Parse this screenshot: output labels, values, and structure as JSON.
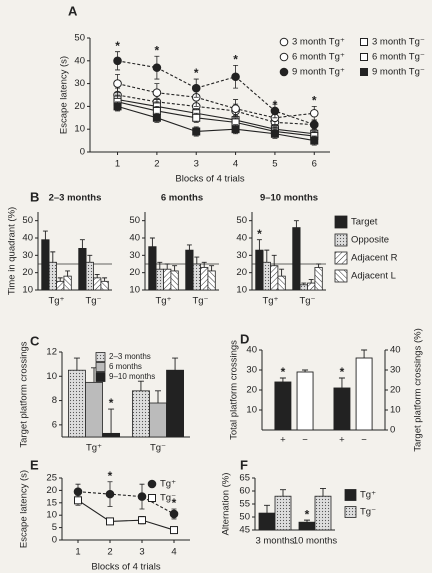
{
  "chart_data": [
    {
      "type": "line",
      "panel": "A",
      "xlabel": "Blocks of 4 trials",
      "ylabel": "Escape latency (s)",
      "x": [
        1,
        2,
        3,
        4,
        5,
        6
      ],
      "xlim": [
        0.3,
        6.4
      ],
      "xticks": [
        1,
        2,
        3,
        4,
        5,
        6
      ],
      "ylim": [
        0,
        50
      ],
      "yticks": [
        0,
        10,
        20,
        30,
        40,
        50
      ],
      "significance_label": "*",
      "legend": "upper right",
      "series": [
        {
          "name": "3 month Tg⁺",
          "color": "#222",
          "marker": "circle",
          "marker_fill": "open",
          "dash": true,
          "values": [
            25,
            22,
            20,
            18,
            13,
            12
          ],
          "errors": [
            3,
            3,
            3,
            3,
            2,
            2
          ]
        },
        {
          "name": "6 month Tg⁺",
          "color": "#222",
          "marker": "circle",
          "marker_fill": "open",
          "dash": true,
          "values": [
            30,
            26,
            24,
            19,
            15,
            17
          ],
          "errors": [
            4,
            4,
            4,
            4,
            3,
            3
          ],
          "significant": [
            false,
            false,
            false,
            false,
            true,
            true
          ]
        },
        {
          "name": "9 month Tg⁺",
          "color": "#222",
          "marker": "circle",
          "marker_fill": "filled",
          "dash": true,
          "values": [
            40,
            37,
            28,
            33,
            18,
            12
          ],
          "errors": [
            4,
            5,
            4,
            5,
            3,
            2
          ],
          "significant": [
            true,
            true,
            true,
            true,
            false,
            false
          ]
        },
        {
          "name": "3 month Tg⁻",
          "color": "#222",
          "marker": "square",
          "marker_fill": "open",
          "dash": false,
          "values": [
            23,
            20,
            17,
            14,
            10,
            8
          ],
          "errors": [
            3,
            3,
            2,
            2,
            2,
            2
          ]
        },
        {
          "name": "6 month Tg⁻",
          "color": "#222",
          "marker": "square",
          "marker_fill": "open",
          "dash": false,
          "values": [
            22,
            18,
            15,
            13,
            9,
            7
          ],
          "errors": [
            3,
            2,
            2,
            2,
            2,
            2
          ]
        },
        {
          "name": "9 month Tg⁻",
          "color": "#222",
          "marker": "square",
          "marker_fill": "filled",
          "dash": false,
          "values": [
            20,
            15,
            9,
            10,
            8,
            5
          ],
          "errors": [
            2,
            2,
            2,
            2,
            2,
            2
          ]
        }
      ]
    },
    {
      "type": "bar",
      "panel": "B",
      "ylabel": "Time in quadrant (%)",
      "categories": [
        "Tg⁺",
        "Tg⁻"
      ],
      "ylim": [
        10,
        55
      ],
      "yticks": [
        10,
        20,
        30,
        40,
        50
      ],
      "reference_line": 25,
      "significance_label": "*",
      "legend": "right",
      "series": [
        {
          "name": "Target",
          "color": "#222",
          "pattern": "solid"
        },
        {
          "name": "Opposite",
          "color": "#ddd",
          "pattern": "dots"
        },
        {
          "name": "Adjacent R",
          "color": "#fff",
          "pattern": "hatch-down"
        },
        {
          "name": "Adjacent L",
          "color": "#fff",
          "pattern": "hatch-up"
        }
      ],
      "facets": [
        {
          "title": "2–3 months",
          "values": [
            [
              39,
              34
            ],
            [
              26,
              26
            ],
            [
              15,
              17
            ],
            [
              18,
              15
            ]
          ],
          "errors": [
            [
              5,
              5
            ],
            [
              6,
              4
            ],
            [
              2,
              2
            ],
            [
              3,
              2
            ]
          ]
        },
        {
          "title": "6 months",
          "values": [
            [
              35,
              33
            ],
            [
              22,
              25
            ],
            [
              22,
              23
            ],
            [
              21,
              21
            ]
          ],
          "errors": [
            [
              5,
              3
            ],
            [
              4,
              4
            ],
            [
              3,
              3
            ],
            [
              3,
              3
            ]
          ]
        },
        {
          "title": "9–10 months",
          "values": [
            [
              33,
              46
            ],
            [
              26,
              13
            ],
            [
              24,
              14
            ],
            [
              18,
              23
            ]
          ],
          "errors": [
            [
              6,
              4
            ],
            [
              7,
              1
            ],
            [
              6,
              2
            ],
            [
              4,
              2
            ]
          ],
          "significant": [
            [
              true,
              false
            ],
            [
              false,
              false
            ],
            [
              false,
              false
            ],
            [
              false,
              false
            ]
          ]
        }
      ]
    },
    {
      "type": "bar",
      "panel": "C",
      "ylabel": "Target platform crossings",
      "categories": [
        "Tg⁺",
        "Tg⁻"
      ],
      "ylim": [
        5,
        12
      ],
      "yticks": [
        6,
        8,
        10,
        12
      ],
      "significance_label": "*",
      "legend": "upper center",
      "series": [
        {
          "name": "2–3 months",
          "color": "#ddd",
          "pattern": "dots",
          "values": [
            10.5,
            8.8
          ],
          "errors": [
            1,
            0.8
          ]
        },
        {
          "name": "6 months",
          "color": "#bbb",
          "pattern": "solid",
          "values": [
            9.5,
            7.8
          ],
          "errors": [
            1.2,
            1
          ]
        },
        {
          "name": "9–10 months",
          "color": "#222",
          "pattern": "solid",
          "values": [
            5.3,
            10.5
          ],
          "errors": [
            2,
            1
          ],
          "significant": [
            true,
            false
          ]
        }
      ]
    },
    {
      "type": "bar",
      "panel": "D",
      "ylabel": "Total platform crossings",
      "y2label": "Target platform crossings (%)",
      "categories": [
        "+",
        "−",
        "+",
        "−"
      ],
      "bar_colors": [
        "#222",
        "#fff",
        "#222",
        "#fff"
      ],
      "ylim": [
        0,
        40
      ],
      "yticks": [
        10,
        20,
        30,
        40
      ],
      "y2lim": [
        0,
        40
      ],
      "y2ticks": [
        0,
        10,
        20,
        30,
        40
      ],
      "significance_label": "*",
      "series": [
        {
          "axis": "y",
          "values": [
            24,
            29,
            null,
            null
          ],
          "errors": [
            2,
            1,
            null,
            null
          ],
          "significant": [
            true,
            false,
            false,
            false
          ]
        },
        {
          "axis": "y2",
          "values": [
            null,
            null,
            21,
            36
          ],
          "errors": [
            null,
            null,
            5,
            4
          ],
          "significant": [
            false,
            false,
            true,
            false
          ]
        }
      ]
    },
    {
      "type": "line",
      "panel": "E",
      "xlabel": "Blocks of 4 trials",
      "ylabel": "Escape latency (s)",
      "x": [
        1,
        2,
        3,
        4
      ],
      "xlim": [
        0.5,
        4.5
      ],
      "xticks": [
        1,
        2,
        3,
        4
      ],
      "ylim": [
        0,
        25
      ],
      "yticks": [
        0,
        5,
        10,
        15,
        20,
        25
      ],
      "significance_label": "*",
      "legend": "upper right",
      "series": [
        {
          "name": "Tg⁺",
          "color": "#222",
          "marker": "circle",
          "marker_fill": "filled",
          "dash": true,
          "values": [
            19.5,
            18.5,
            17.5,
            10.5
          ],
          "errors": [
            3,
            5,
            5,
            2
          ],
          "significant": [
            false,
            true,
            false,
            true
          ]
        },
        {
          "name": "Tg⁻",
          "color": "#222",
          "marker": "square",
          "marker_fill": "open",
          "dash": false,
          "values": [
            16,
            7.5,
            8,
            4
          ],
          "errors": [
            2,
            0.5,
            1.5,
            0.6
          ]
        }
      ]
    },
    {
      "type": "bar",
      "panel": "F",
      "ylabel": "Alternation (%)",
      "categories": [
        "3 months",
        "10 months"
      ],
      "ylim": [
        45,
        65
      ],
      "yticks": [
        45,
        50,
        55,
        60,
        65
      ],
      "significance_label": "*",
      "legend": "right",
      "series": [
        {
          "name": "Tg⁺",
          "color": "#222",
          "pattern": "solid",
          "values": [
            51.5,
            48
          ],
          "errors": [
            3,
            0.8
          ],
          "significant": [
            false,
            true
          ]
        },
        {
          "name": "Tg⁻",
          "color": "#ddd",
          "pattern": "dots",
          "values": [
            58,
            58
          ],
          "errors": [
            2.5,
            3
          ]
        }
      ]
    }
  ]
}
